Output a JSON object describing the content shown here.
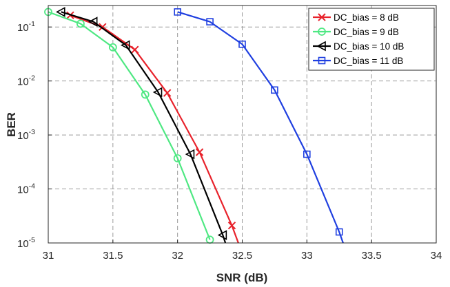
{
  "chart_data": {
    "type": "line",
    "title": "",
    "xlabel": "SNR (dB)",
    "ylabel": "BER",
    "xlim": [
      31,
      34
    ],
    "ylim": [
      1e-05,
      0.25
    ],
    "yscale": "log",
    "grid": true,
    "legend_position": "top-right",
    "xticks": [
      31,
      31.5,
      32,
      32.5,
      33,
      33.5,
      34
    ],
    "xtick_labels": [
      "31",
      "31.5",
      "32",
      "32.5",
      "33",
      "33.5",
      "34"
    ],
    "yticks": [
      {
        "value": 0.1,
        "base": "10",
        "exp": "-1"
      },
      {
        "value": 0.01,
        "base": "10",
        "exp": "-2"
      },
      {
        "value": 0.001,
        "base": "10",
        "exp": "-3"
      },
      {
        "value": 0.0001,
        "base": "10",
        "exp": "-4"
      },
      {
        "value": 1e-05,
        "base": "10",
        "exp": "-5"
      }
    ],
    "series": [
      {
        "name": "DC_bias = 8 dB",
        "color": "#e8222b",
        "marker": "x",
        "x": [
          31.17,
          31.42,
          31.67,
          31.92,
          32.17,
          32.42,
          32.47
        ],
        "y": [
          0.165,
          0.1,
          0.038,
          0.006,
          0.00048,
          2.1e-05,
          1e-05
        ]
      },
      {
        "name": "DC_bias = 9 dB",
        "color": "#4ee882",
        "marker": "circle",
        "x": [
          31.0,
          31.25,
          31.5,
          31.75,
          32.0,
          32.25
        ],
        "y": [
          0.19,
          0.115,
          0.042,
          0.0056,
          0.00037,
          1.15e-05
        ]
      },
      {
        "name": "DC_bias = 10 dB",
        "color": "#000000",
        "marker": "triangle-left",
        "x": [
          31.1,
          31.35,
          31.6,
          31.85,
          32.1,
          32.35,
          32.37
        ],
        "y": [
          0.19,
          0.125,
          0.046,
          0.0062,
          0.00044,
          1.4e-05,
          1e-05
        ]
      },
      {
        "name": "DC_bias = 11 dB",
        "color": "#1f3fe0",
        "marker": "square",
        "x": [
          32.0,
          32.25,
          32.5,
          32.75,
          33.0,
          33.25,
          33.28
        ],
        "y": [
          0.19,
          0.125,
          0.048,
          0.0068,
          0.00044,
          1.6e-05,
          1e-05
        ]
      }
    ]
  }
}
